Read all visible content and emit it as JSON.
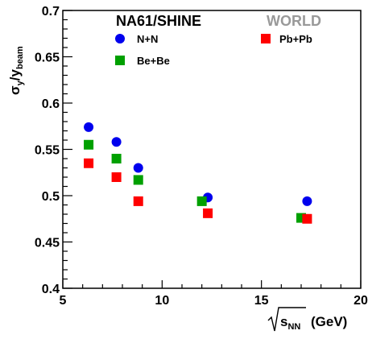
{
  "chart_data": {
    "type": "scatter",
    "title": "NA61/SHINE",
    "subtitle": "WORLD",
    "xlabel": {
      "main": "s",
      "sub": "NN",
      "unit": "(GeV)"
    },
    "ylabel": {
      "num": "σ",
      "num_sub": "y",
      "den": "y",
      "den_sub": "beam"
    },
    "xlim": [
      5,
      20
    ],
    "ylim": [
      0.4,
      0.7
    ],
    "x_ticks": [
      "5",
      "10",
      "15",
      "20"
    ],
    "y_ticks": [
      "0.4",
      "0.45",
      "0.5",
      "0.55",
      "0.6",
      "0.65",
      "0.7"
    ],
    "grid": false,
    "legend": "top",
    "colors": {
      "nn": "#0000ee",
      "bebe": "#00a000",
      "pbpb": "#ff0000",
      "world": "#999999"
    },
    "series": [
      {
        "name": "N+N",
        "marker": "circle",
        "color": "#0000ee",
        "x": [
          6.3,
          7.7,
          8.8,
          12.3,
          17.3
        ],
        "y": [
          0.574,
          0.558,
          0.53,
          0.498,
          0.494
        ]
      },
      {
        "name": "Be+Be",
        "marker": "square",
        "color": "#00a000",
        "x": [
          6.3,
          7.7,
          8.8,
          12.0,
          17.0
        ],
        "y": [
          0.555,
          0.54,
          0.517,
          0.494,
          0.476
        ]
      },
      {
        "name": "Pb+Pb",
        "marker": "square",
        "color": "#ff0000",
        "x": [
          6.3,
          7.7,
          8.8,
          12.3,
          17.3
        ],
        "y": [
          0.535,
          0.52,
          0.494,
          0.481,
          0.475
        ]
      }
    ]
  }
}
